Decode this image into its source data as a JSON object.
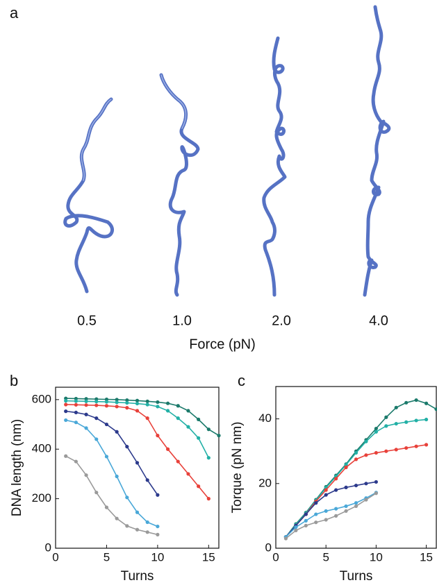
{
  "panel_a": {
    "panel_label": "a",
    "forces": [
      "0.5",
      "1.0",
      "2.0",
      "4.0"
    ],
    "axis_label": "Force (pN)"
  },
  "chart_data": [
    {
      "type": "line",
      "panel_label": "b",
      "x_label": "Turns",
      "y_label": "DNA length (nm)",
      "x": [
        1,
        2,
        3,
        4,
        5,
        6,
        7,
        8,
        9,
        10,
        11,
        12,
        13,
        14,
        15,
        16
      ],
      "xlim": [
        0,
        16
      ],
      "ylim": [
        0,
        650
      ],
      "xticks": [
        0,
        5,
        10,
        15
      ],
      "yticks": [
        0,
        200,
        400,
        600
      ],
      "series": [
        {
          "color": "#1b7a6b",
          "values": [
            605,
            604,
            603,
            602,
            601,
            600,
            598,
            596,
            593,
            590,
            585,
            575,
            555,
            520,
            480,
            455
          ]
        },
        {
          "color": "#22b0a6",
          "values": [
            595,
            594,
            593,
            592,
            591,
            589,
            587,
            584,
            580,
            572,
            555,
            525,
            490,
            445,
            365,
            null
          ]
        },
        {
          "color": "#e8413a",
          "values": [
            580,
            579,
            578,
            577,
            575,
            572,
            567,
            555,
            525,
            455,
            400,
            350,
            300,
            250,
            200,
            null
          ]
        },
        {
          "color": "#2c3a8c",
          "values": [
            553,
            548,
            540,
            525,
            500,
            470,
            410,
            345,
            275,
            215,
            null,
            null,
            null,
            null,
            null,
            null
          ]
        },
        {
          "color": "#4aa8d8",
          "values": [
            517,
            508,
            485,
            440,
            370,
            290,
            205,
            145,
            105,
            88,
            null,
            null,
            null,
            null,
            null,
            null
          ]
        },
        {
          "color": "#9a9a9a",
          "values": [
            372,
            350,
            295,
            225,
            165,
            120,
            90,
            75,
            65,
            55,
            null,
            null,
            null,
            null,
            null,
            null
          ]
        }
      ]
    },
    {
      "type": "line",
      "panel_label": "c",
      "x_label": "Turns",
      "y_label": "Torque (pN nm)",
      "x": [
        1,
        2,
        3,
        4,
        5,
        6,
        7,
        8,
        9,
        10,
        11,
        12,
        13,
        14,
        15,
        16
      ],
      "xlim": [
        0,
        16
      ],
      "ylim": [
        0,
        50
      ],
      "xticks": [
        0,
        5,
        10,
        15
      ],
      "yticks": [
        0,
        20,
        40
      ],
      "series": [
        {
          "color": "#1b7a6b",
          "values": [
            3.5,
            7.5,
            11,
            15,
            19,
            22.5,
            26,
            30,
            33.5,
            37,
            40.5,
            43.5,
            45,
            45.8,
            44.8,
            43
          ]
        },
        {
          "color": "#22b0a6",
          "values": [
            3.5,
            7.3,
            10.8,
            14.8,
            18.7,
            22.2,
            25.8,
            29.5,
            33,
            36,
            37.8,
            38.5,
            39,
            39.5,
            39.8,
            null
          ]
        },
        {
          "color": "#e8413a",
          "values": [
            3.5,
            7,
            10.5,
            14.5,
            18,
            21.5,
            25,
            27.5,
            28.8,
            29.5,
            30,
            30.5,
            31,
            31.5,
            32,
            null
          ]
        },
        {
          "color": "#2c3a8c",
          "values": [
            3.5,
            7,
            10.5,
            14,
            16.5,
            18,
            18.8,
            19.4,
            20,
            20.5,
            null,
            null,
            null,
            null,
            null,
            null
          ]
        },
        {
          "color": "#4aa8d8",
          "values": [
            3.5,
            6.5,
            8.5,
            10.5,
            11.5,
            12.2,
            13,
            14,
            15.5,
            17.2,
            null,
            null,
            null,
            null,
            null,
            null
          ]
        },
        {
          "color": "#9a9a9a",
          "values": [
            3,
            5.5,
            7,
            8,
            8.8,
            10,
            11.5,
            13,
            15,
            17,
            null,
            null,
            null,
            null,
            null,
            null
          ]
        }
      ]
    }
  ]
}
